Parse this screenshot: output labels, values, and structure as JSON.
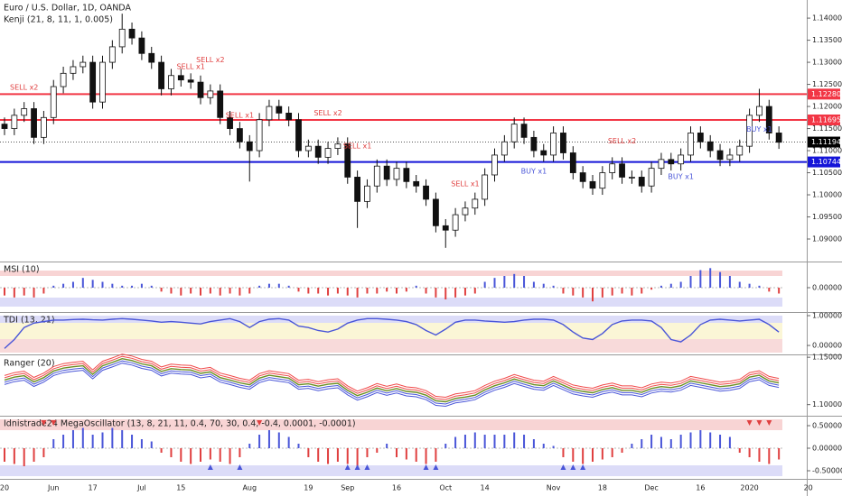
{
  "chart_data": [
    {
      "type": "candlestick",
      "title": "Euro / U.S. Dollar, 1D, OANDA",
      "subtitle": "Kenji (21, 8, 11, 1, 0.005)",
      "categories": [
        "20",
        null,
        null,
        null,
        null,
        "Jun",
        null,
        null,
        null,
        "17",
        null,
        null,
        null,
        null,
        "Jul",
        null,
        null,
        null,
        "15",
        null,
        null,
        null,
        null,
        null,
        null,
        "Aug",
        null,
        null,
        null,
        null,
        null,
        "19",
        null,
        null,
        null,
        "Sep",
        null,
        null,
        null,
        null,
        "16",
        null,
        null,
        null,
        null,
        "Oct",
        null,
        null,
        null,
        "14",
        null,
        null,
        null,
        null,
        null,
        null,
        "Nov",
        null,
        null,
        null,
        null,
        "18",
        null,
        null,
        null,
        null,
        "Dec",
        null,
        null,
        null,
        null,
        "16",
        null,
        null,
        null,
        null,
        "2020",
        null,
        null,
        null,
        null,
        null,
        "20"
      ],
      "open": [
        1.116,
        1.115,
        1.118,
        1.1195,
        1.113,
        1.1175,
        1.1245,
        1.1275,
        1.129,
        1.13,
        1.121,
        1.13,
        1.1335,
        1.1375,
        1.1355,
        1.132,
        1.13,
        1.124,
        1.127,
        1.126,
        1.1255,
        1.122,
        1.1235,
        1.1175,
        1.115,
        1.112,
        1.11,
        1.117,
        1.12,
        1.1185,
        1.117,
        1.11,
        1.111,
        1.1085,
        1.1105,
        1.1115,
        1.104,
        1.0985,
        1.102,
        1.1065,
        1.1035,
        1.106,
        1.103,
        1.102,
        1.099,
        1.093,
        1.092,
        1.0955,
        1.097,
        1.099,
        1.1045,
        1.109,
        1.112,
        1.116,
        1.113,
        1.11,
        1.109,
        1.114,
        1.1095,
        1.105,
        1.103,
        1.1015,
        1.105,
        1.107,
        1.104,
        1.104,
        1.102,
        1.106,
        1.108,
        1.107,
        1.109,
        1.114,
        1.112,
        1.11,
        1.108,
        1.109,
        1.111,
        1.118,
        1.12,
        1.114,
        null,
        null,
        null
      ],
      "high": [
        1.1175,
        1.1195,
        1.121,
        1.121,
        1.119,
        1.126,
        1.129,
        1.1305,
        1.1315,
        1.1315,
        1.1315,
        1.135,
        1.141,
        1.139,
        1.137,
        1.1335,
        1.1315,
        1.1285,
        1.1285,
        1.1275,
        1.127,
        1.125,
        1.125,
        1.119,
        1.1165,
        1.1135,
        1.1185,
        1.1215,
        1.1215,
        1.12,
        1.1185,
        1.1125,
        1.1125,
        1.112,
        1.113,
        1.113,
        1.1055,
        1.1035,
        1.108,
        1.108,
        1.1075,
        1.1075,
        1.1045,
        1.1035,
        1.1005,
        1.0945,
        1.097,
        1.0985,
        1.1005,
        1.106,
        1.1105,
        1.1135,
        1.1175,
        1.1175,
        1.1145,
        1.1115,
        1.1155,
        1.1155,
        1.111,
        1.1065,
        1.1045,
        1.1065,
        1.1085,
        1.1085,
        1.1055,
        1.1055,
        1.1075,
        1.1095,
        1.1095,
        1.1105,
        1.1155,
        1.1155,
        1.1135,
        1.1115,
        1.1105,
        1.1125,
        1.1195,
        1.124,
        1.1215,
        1.1155,
        null,
        null,
        null
      ],
      "low": [
        1.1135,
        1.1135,
        1.1165,
        1.1115,
        1.1115,
        1.116,
        1.123,
        1.126,
        1.1275,
        1.1195,
        1.1195,
        1.1285,
        1.132,
        1.134,
        1.1305,
        1.1285,
        1.1225,
        1.1225,
        1.1245,
        1.124,
        1.1205,
        1.1205,
        1.116,
        1.1135,
        1.1105,
        1.103,
        1.1085,
        1.1155,
        1.117,
        1.1155,
        1.1085,
        1.1085,
        1.107,
        1.107,
        1.109,
        1.1025,
        1.0925,
        1.097,
        1.1005,
        1.102,
        1.102,
        1.1015,
        1.1005,
        1.0975,
        1.0915,
        1.088,
        1.0905,
        1.094,
        1.0955,
        1.0975,
        1.103,
        1.1075,
        1.1105,
        1.1115,
        1.1085,
        1.1075,
        1.1075,
        1.108,
        1.1035,
        1.1015,
        1.1,
        1.1,
        1.1035,
        1.1025,
        1.1025,
        1.1005,
        1.1005,
        1.1045,
        1.1055,
        1.1055,
        1.1075,
        1.1105,
        1.1085,
        1.1065,
        1.1065,
        1.1075,
        1.1095,
        1.1165,
        1.1125,
        1.1104,
        null,
        null,
        null
      ],
      "close": [
        1.115,
        1.118,
        1.1195,
        1.113,
        1.1175,
        1.1245,
        1.1275,
        1.129,
        1.13,
        1.121,
        1.13,
        1.1335,
        1.1375,
        1.1355,
        1.132,
        1.13,
        1.124,
        1.127,
        1.126,
        1.1255,
        1.122,
        1.1235,
        1.1175,
        1.115,
        1.112,
        1.11,
        1.117,
        1.12,
        1.1185,
        1.117,
        1.11,
        1.111,
        1.1085,
        1.1105,
        1.1115,
        1.104,
        1.0985,
        1.102,
        1.1065,
        1.1035,
        1.106,
        1.103,
        1.102,
        1.099,
        1.093,
        1.092,
        1.0955,
        1.097,
        1.099,
        1.1045,
        1.109,
        1.112,
        1.116,
        1.113,
        1.11,
        1.109,
        1.114,
        1.1095,
        1.105,
        1.103,
        1.1015,
        1.105,
        1.107,
        1.104,
        1.104,
        1.102,
        1.106,
        1.108,
        1.107,
        1.109,
        1.114,
        1.112,
        1.11,
        1.108,
        1.109,
        1.111,
        1.118,
        1.12,
        1.114,
        1.1119,
        null,
        null,
        null
      ],
      "up_color": "#ffffff",
      "down_color": "#111111",
      "ylim": [
        1.0849,
        1.1441
      ],
      "yticks": [
        {
          "value": 1.09,
          "label": "1.09000"
        },
        {
          "value": 1.095,
          "label": "1.09500"
        },
        {
          "value": 1.1,
          "label": "1.10000"
        },
        {
          "value": 1.105,
          "label": "1.10500"
        },
        {
          "value": 1.11,
          "label": "1.11000"
        },
        {
          "value": 1.115,
          "label": "1.11500"
        },
        {
          "value": 1.12,
          "label": "1.12000"
        },
        {
          "value": 1.125,
          "label": "1.12500"
        },
        {
          "value": 1.13,
          "label": "1.13000"
        },
        {
          "value": 1.135,
          "label": "1.13500"
        },
        {
          "value": 1.14,
          "label": "1.14000"
        }
      ],
      "levels": [
        {
          "value": 1.1228,
          "label": "1.12280",
          "color": "#f23645"
        },
        {
          "value": 1.11695,
          "label": "1.11695",
          "color": "#f23645"
        },
        {
          "value": 1.10744,
          "label": "1.10744",
          "color": "#1414d8"
        }
      ],
      "last": {
        "value": 1.11194,
        "label": "1.11194",
        "color": "#000000"
      },
      "annotations": [
        {
          "text": "SELL x2",
          "x": 2,
          "y": 1.1243,
          "color": "#e04040"
        },
        {
          "text": "SELL x1",
          "x": 19,
          "y": 1.129,
          "color": "#e04040"
        },
        {
          "text": "SELL x2",
          "x": 21,
          "y": 1.1305,
          "color": "#e04040"
        },
        {
          "text": "SELL x1",
          "x": 24,
          "y": 1.118,
          "color": "#e04040"
        },
        {
          "text": "SELL x2",
          "x": 33,
          "y": 1.1185,
          "color": "#e04040"
        },
        {
          "text": "SELL x1",
          "x": 36,
          "y": 1.111,
          "color": "#e04040"
        },
        {
          "text": "SELL x1",
          "x": 47,
          "y": 1.1025,
          "color": "#e04040"
        },
        {
          "text": "BUY x1",
          "x": 54,
          "y": 1.1053,
          "color": "#4a56d8"
        },
        {
          "text": "SELL x2",
          "x": 63,
          "y": 1.1122,
          "color": "#e04040"
        },
        {
          "text": "BUY x1",
          "x": 69,
          "y": 1.1041,
          "color": "#4a56d8"
        },
        {
          "text": "BUY x1",
          "x": 77,
          "y": 1.1148,
          "color": "#4a56d8"
        }
      ]
    },
    {
      "type": "bar",
      "title": "MSI (10)",
      "values": [
        -0.4,
        -0.5,
        -0.4,
        -0.5,
        -0.3,
        0.1,
        0.2,
        0.3,
        0.5,
        0.4,
        0.3,
        0.2,
        0.1,
        0.1,
        0.2,
        0.1,
        -0.2,
        -0.3,
        -0.4,
        -0.3,
        -0.4,
        -0.3,
        -0.4,
        -0.3,
        -0.4,
        -0.3,
        0.1,
        0.2,
        0.2,
        0.1,
        -0.2,
        -0.3,
        -0.3,
        -0.4,
        -0.3,
        -0.4,
        -0.5,
        -0.3,
        -0.3,
        -0.2,
        -0.3,
        -0.2,
        0.1,
        -0.3,
        -0.5,
        -0.6,
        -0.5,
        -0.4,
        -0.3,
        0.3,
        0.5,
        0.6,
        0.7,
        0.6,
        0.3,
        0.2,
        0.1,
        -0.3,
        -0.4,
        -0.5,
        -0.7,
        -0.5,
        -0.4,
        -0.3,
        -0.4,
        -0.3,
        -0.1,
        0.1,
        0.2,
        0.3,
        0.6,
        0.9,
        1.0,
        0.8,
        0.6,
        0.3,
        0.2,
        0.1,
        -0.2,
        -0.3
      ],
      "pos_color": "#4a56d8",
      "neg_color": "#e04040",
      "ylim": [
        -1.2,
        1.2
      ],
      "yticks": [
        {
          "value": 0,
          "label": "0.00000"
        }
      ]
    },
    {
      "type": "line",
      "title": "TDI (13, 21)",
      "values": [
        -0.1,
        0.2,
        0.6,
        0.75,
        0.8,
        0.85,
        0.85,
        0.87,
        0.88,
        0.86,
        0.85,
        0.88,
        0.9,
        0.88,
        0.85,
        0.82,
        0.78,
        0.8,
        0.78,
        0.75,
        0.72,
        0.8,
        0.85,
        0.9,
        0.8,
        0.6,
        0.8,
        0.88,
        0.9,
        0.85,
        0.65,
        0.6,
        0.5,
        0.45,
        0.55,
        0.75,
        0.85,
        0.9,
        0.9,
        0.88,
        0.85,
        0.8,
        0.7,
        0.5,
        0.35,
        0.55,
        0.78,
        0.85,
        0.85,
        0.82,
        0.8,
        0.78,
        0.8,
        0.85,
        0.88,
        0.88,
        0.85,
        0.7,
        0.45,
        0.25,
        0.2,
        0.4,
        0.7,
        0.82,
        0.85,
        0.85,
        0.82,
        0.6,
        0.2,
        0.12,
        0.35,
        0.7,
        0.85,
        0.88,
        0.85,
        0.82,
        0.85,
        0.88,
        0.7,
        0.45
      ],
      "color": "#4a56d8",
      "low_color": "#e04040",
      "ylim": [
        -0.27,
        1.06
      ],
      "yticks": [
        {
          "value": 1,
          "label": "1.00000"
        },
        {
          "value": 0,
          "label": "0.00000"
        }
      ]
    },
    {
      "type": "line",
      "title": "Ranger (20)",
      "values": [
        1.126,
        1.129,
        1.1305,
        1.124,
        1.1285,
        1.1355,
        1.1385,
        1.14,
        1.141,
        1.132,
        1.141,
        1.1445,
        1.1485,
        1.1465,
        1.143,
        1.141,
        1.135,
        1.138,
        1.137,
        1.1365,
        1.133,
        1.1345,
        1.1285,
        1.126,
        1.123,
        1.121,
        1.128,
        1.131,
        1.1295,
        1.128,
        1.121,
        1.122,
        1.1195,
        1.1215,
        1.1225,
        1.115,
        1.1095,
        1.113,
        1.1175,
        1.1145,
        1.117,
        1.114,
        1.113,
        1.11,
        1.104,
        1.103,
        1.1065,
        1.108,
        1.11,
        1.1155,
        1.12,
        1.123,
        1.127,
        1.124,
        1.121,
        1.12,
        1.125,
        1.1205,
        1.116,
        1.114,
        1.1125,
        1.116,
        1.118,
        1.115,
        1.115,
        1.113,
        1.117,
        1.119,
        1.118,
        1.12,
        1.125,
        1.123,
        1.121,
        1.119,
        1.12,
        1.122,
        1.129,
        1.131,
        1.125,
        1.1229
      ],
      "color": "#6b8e23",
      "band_colors": [
        "#f04a4a",
        "#4a56d8"
      ],
      "ylim": [
        1.0892,
        1.1511
      ],
      "yticks": [
        {
          "value": 1.15,
          "label": "1.15000"
        },
        {
          "value": 1.1,
          "label": "1.10000"
        }
      ]
    },
    {
      "type": "bar",
      "title": "Idnistrade24 MegaOscillator (13, 8, 21, 11, 0.4, 70, 30, 0.4, -0.4, 0.0001, -0.0001)",
      "values": [
        -0.3,
        -0.35,
        -0.4,
        -0.3,
        -0.2,
        0.2,
        0.3,
        0.4,
        0.45,
        0.3,
        0.35,
        0.45,
        0.4,
        0.3,
        0.2,
        0.15,
        -0.1,
        -0.2,
        -0.3,
        -0.35,
        -0.3,
        -0.25,
        -0.3,
        -0.35,
        -0.2,
        0.1,
        0.3,
        0.4,
        0.35,
        0.25,
        0.1,
        -0.2,
        -0.3,
        -0.35,
        -0.3,
        -0.35,
        -0.4,
        -0.2,
        -0.1,
        0.1,
        -0.2,
        -0.25,
        -0.3,
        -0.35,
        -0.3,
        0.1,
        0.25,
        0.3,
        0.35,
        0.3,
        0.3,
        0.3,
        0.35,
        0.3,
        0.2,
        0.1,
        0.05,
        -0.2,
        -0.3,
        -0.35,
        -0.3,
        -0.25,
        -0.2,
        -0.1,
        0.1,
        0.2,
        0.3,
        0.25,
        0.2,
        0.3,
        0.35,
        0.4,
        0.35,
        0.3,
        0.25,
        -0.1,
        -0.2,
        -0.3,
        -0.35,
        -0.25
      ],
      "pos_color": "#4a56d8",
      "neg_color": "#e04040",
      "down_signals": [
        4,
        5,
        26,
        76,
        77,
        78
      ],
      "up_signals": [
        21,
        24,
        35,
        36,
        37,
        43,
        44,
        57,
        58,
        59
      ],
      "ylim": [
        -0.66,
        0.68
      ],
      "yticks": [
        {
          "value": 0.5,
          "label": "0.50000"
        },
        {
          "value": 0,
          "label": "0.00000"
        },
        {
          "value": -0.5,
          "label": "-0.50000"
        }
      ]
    }
  ]
}
